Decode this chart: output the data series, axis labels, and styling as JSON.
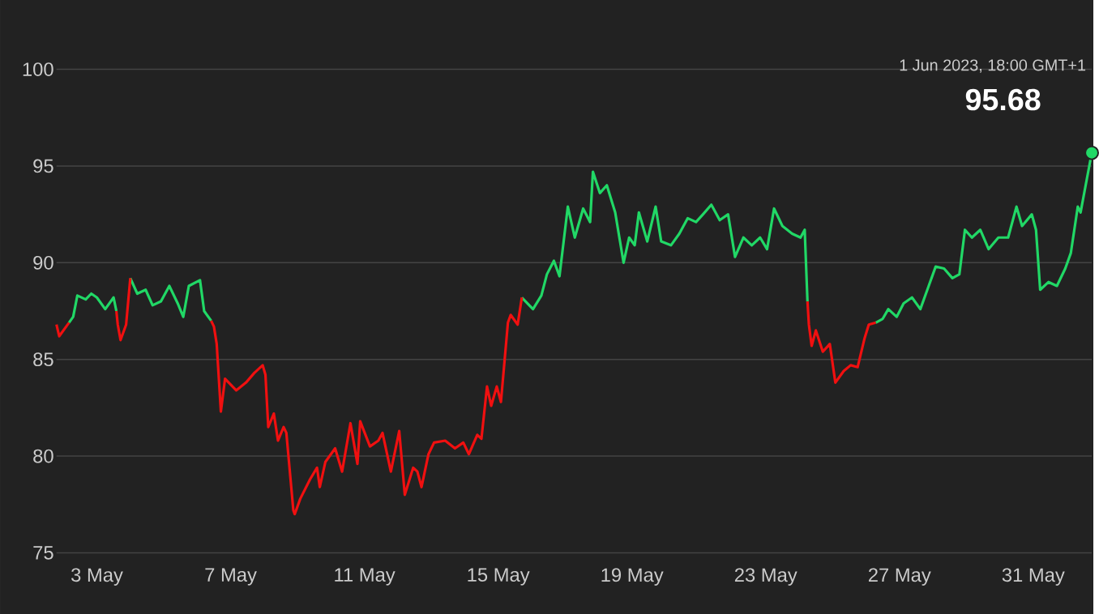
{
  "chart_data": {
    "type": "line",
    "grid": "y",
    "xlim": [
      "2023-05-01T19:00",
      "2023-06-01T18:00"
    ],
    "ylim": [
      75,
      100
    ],
    "yticks": [
      75,
      80,
      85,
      90,
      95,
      100
    ],
    "xticks": [
      {
        "value": "2023-05-03",
        "label": "3 May"
      },
      {
        "value": "2023-05-07",
        "label": "7 May"
      },
      {
        "value": "2023-05-11",
        "label": "11 May"
      },
      {
        "value": "2023-05-15",
        "label": "15 May"
      },
      {
        "value": "2023-05-19",
        "label": "19 May"
      },
      {
        "value": "2023-05-23",
        "label": "23 May"
      },
      {
        "value": "2023-05-27",
        "label": "27 May"
      },
      {
        "value": "2023-05-31",
        "label": "31 May"
      }
    ],
    "annotations": [
      {
        "text": "95.68",
        "x": "2023-06-01T18:00",
        "y": 95.68
      },
      "1 Jun 2023, 18:00 GMT+1"
    ],
    "x": [
      "2023-05-01T19:00",
      "2023-05-01T21:00",
      "2023-05-02T04:00",
      "2023-05-02T07:00",
      "2023-05-02T10:00",
      "2023-05-02T16:00",
      "2023-05-02T20:00",
      "2023-05-03T00:00",
      "2023-05-03T06:00",
      "2023-05-03T12:00",
      "2023-05-03T14:00",
      "2023-05-03T15:00",
      "2023-05-03T17:00",
      "2023-05-03T21:00",
      "2023-05-04T00:00",
      "2023-05-04T05:00",
      "2023-05-04T11:00",
      "2023-05-04T16:00",
      "2023-05-04T22:00",
      "2023-05-05T04:00",
      "2023-05-05T10:00",
      "2023-05-05T14:00",
      "2023-05-05T18:00",
      "2023-05-06T02:00",
      "2023-05-06T05:00",
      "2023-05-06T10:00",
      "2023-05-06T12:00",
      "2023-05-06T14:00",
      "2023-05-06T17:00",
      "2023-05-06T20:00",
      "2023-05-07T04:00",
      "2023-05-07T11:00",
      "2023-05-07T17:00",
      "2023-05-07T23:00",
      "2023-05-08T01:00",
      "2023-05-08T03:00",
      "2023-05-08T07:00",
      "2023-05-08T10:00",
      "2023-05-08T14:00",
      "2023-05-08T16:00",
      "2023-05-08T21:00",
      "2023-05-08T22:00",
      "2023-05-09T02:00",
      "2023-05-09T09:00",
      "2023-05-09T14:00",
      "2023-05-09T16:00",
      "2023-05-09T20:00",
      "2023-05-10T03:00",
      "2023-05-10T08:00",
      "2023-05-10T14:00",
      "2023-05-10T19:00",
      "2023-05-10T21:00",
      "2023-05-11T04:00",
      "2023-05-11T10:00",
      "2023-05-11T13:00",
      "2023-05-11T19:00",
      "2023-05-12T01:00",
      "2023-05-12T05:00",
      "2023-05-12T11:00",
      "2023-05-12T14:00",
      "2023-05-12T17:00",
      "2023-05-12T22:00",
      "2023-05-13T02:00",
      "2023-05-13T10:00",
      "2023-05-13T17:00",
      "2023-05-13T23:00",
      "2023-05-14T03:00",
      "2023-05-14T09:00",
      "2023-05-14T12:00",
      "2023-05-14T16:00",
      "2023-05-14T19:00",
      "2023-05-14T23:00",
      "2023-05-15T02:00",
      "2023-05-15T07:00",
      "2023-05-15T09:00",
      "2023-05-15T14:00",
      "2023-05-15T17:00",
      "2023-05-16T01:00",
      "2023-05-16T07:00",
      "2023-05-16T11:00",
      "2023-05-16T16:00",
      "2023-05-16T20:00",
      "2023-05-17T02:00",
      "2023-05-17T07:00",
      "2023-05-17T13:00",
      "2023-05-17T18:00",
      "2023-05-17T20:00",
      "2023-05-18T01:00",
      "2023-05-18T06:00",
      "2023-05-18T12:00",
      "2023-05-18T18:00",
      "2023-05-18T22:00",
      "2023-05-19T02:00",
      "2023-05-19T05:00",
      "2023-05-19T11:00",
      "2023-05-19T17:00",
      "2023-05-19T21:00",
      "2023-05-20T04:00",
      "2023-05-20T10:00",
      "2023-05-20T16:00",
      "2023-05-20T22:00",
      "2023-05-21T03:00",
      "2023-05-21T09:00",
      "2023-05-21T15:00",
      "2023-05-21T21:00",
      "2023-05-22T02:00",
      "2023-05-22T08:00",
      "2023-05-22T14:00",
      "2023-05-22T20:00",
      "2023-05-23T01:00",
      "2023-05-23T06:00",
      "2023-05-23T12:00",
      "2023-05-23T19:00",
      "2023-05-24T01:00",
      "2023-05-24T04:00",
      "2023-05-24T06:00",
      "2023-05-24T07:00",
      "2023-05-24T09:00",
      "2023-05-24T12:00",
      "2023-05-24T17:00",
      "2023-05-24T22:00",
      "2023-05-25T02:00",
      "2023-05-25T08:00",
      "2023-05-25T13:00",
      "2023-05-25T18:00",
      "2023-05-25T23:00",
      "2023-05-26T02:00",
      "2023-05-26T07:00",
      "2023-05-26T12:00",
      "2023-05-26T16:00",
      "2023-05-26T22:00",
      "2023-05-27T03:00",
      "2023-05-27T09:00",
      "2023-05-27T15:00",
      "2023-05-27T21:00",
      "2023-05-28T02:00",
      "2023-05-28T08:00",
      "2023-05-28T14:00",
      "2023-05-28T19:00",
      "2023-05-28T23:00",
      "2023-05-29T04:00",
      "2023-05-29T10:00",
      "2023-05-29T16:00",
      "2023-05-29T23:00",
      "2023-05-30T06:00",
      "2023-05-30T12:00",
      "2023-05-30T16:00",
      "2023-05-30T23:00",
      "2023-05-31T02:00",
      "2023-05-31T05:00",
      "2023-05-31T11:00",
      "2023-05-31T17:00",
      "2023-05-31T23:00",
      "2023-06-01T03:00",
      "2023-06-01T08:00",
      "2023-06-01T10:00",
      "2023-06-01T18:00"
    ],
    "series": [
      {
        "color": "#21d866",
        "values": [
          null,
          null,
          86.9,
          87.2,
          88.3,
          88.1,
          88.4,
          88.2,
          87.6,
          88.2,
          87.5,
          null,
          null,
          null,
          89.2,
          88.4,
          88.6,
          87.8,
          88.0,
          88.8,
          87.9,
          87.2,
          88.8,
          89.1,
          87.5,
          87.0,
          null,
          null,
          null,
          null,
          null,
          null,
          null,
          null,
          null,
          null,
          null,
          null,
          null,
          null,
          null,
          null,
          null,
          null,
          null,
          null,
          null,
          null,
          null,
          null,
          null,
          null,
          null,
          null,
          null,
          null,
          null,
          null,
          null,
          null,
          null,
          null,
          null,
          null,
          null,
          null,
          null,
          null,
          null,
          null,
          null,
          null,
          null,
          null,
          null,
          null,
          88.2,
          87.6,
          88.3,
          89.4,
          90.1,
          89.3,
          92.9,
          91.3,
          92.8,
          92.1,
          94.7,
          93.6,
          94.0,
          92.6,
          90.0,
          91.3,
          90.9,
          92.6,
          91.1,
          92.9,
          91.1,
          90.9,
          91.5,
          92.3,
          92.1,
          92.5,
          93.0,
          92.2,
          92.5,
          90.3,
          91.3,
          90.9,
          91.3,
          90.7,
          92.8,
          91.9,
          91.5,
          91.3,
          91.7,
          88.0,
          null,
          null,
          null,
          null,
          null,
          null,
          null,
          null,
          null,
          null,
          null,
          86.9,
          87.1,
          87.6,
          87.2,
          87.9,
          88.2,
          87.6,
          88.8,
          89.8,
          89.7,
          89.2,
          89.4,
          91.7,
          91.3,
          91.7,
          90.7,
          91.3,
          91.3,
          92.9,
          91.9,
          92.5,
          91.7,
          88.6,
          89.0,
          88.8,
          89.7,
          90.5,
          92.9,
          92.6,
          95.68
        ]
      },
      {
        "color": "#f01010",
        "values": [
          86.8,
          86.2,
          86.9,
          null,
          null,
          null,
          null,
          null,
          null,
          null,
          87.5,
          86.8,
          86.0,
          86.8,
          89.2,
          null,
          null,
          null,
          null,
          null,
          null,
          null,
          null,
          null,
          null,
          87.0,
          86.7,
          85.8,
          82.3,
          84.0,
          83.4,
          83.8,
          84.3,
          84.7,
          84.2,
          81.5,
          82.2,
          80.8,
          81.5,
          81.2,
          77.2,
          77.0,
          77.8,
          78.8,
          79.4,
          78.4,
          79.7,
          80.4,
          79.2,
          81.7,
          79.6,
          81.8,
          80.5,
          80.8,
          81.2,
          79.2,
          81.3,
          78.0,
          79.4,
          79.2,
          78.4,
          80.1,
          80.7,
          80.8,
          80.4,
          80.7,
          80.1,
          81.1,
          80.9,
          83.6,
          82.6,
          83.6,
          82.8,
          86.9,
          87.3,
          86.8,
          88.2,
          null,
          null,
          null,
          null,
          null,
          null,
          null,
          null,
          null,
          null,
          null,
          null,
          null,
          null,
          null,
          null,
          null,
          null,
          null,
          null,
          null,
          null,
          null,
          null,
          null,
          null,
          null,
          null,
          null,
          null,
          null,
          null,
          null,
          null,
          null,
          null,
          null,
          null,
          88.0,
          86.8,
          85.7,
          86.5,
          85.4,
          85.8,
          83.8,
          84.4,
          84.7,
          84.6,
          86.1,
          86.8,
          86.9,
          null,
          null,
          null,
          null,
          null,
          null,
          null,
          null,
          null,
          null,
          null,
          null,
          null,
          null,
          null,
          null,
          null,
          null,
          null,
          null,
          null,
          null,
          null,
          null,
          null,
          null,
          null,
          null,
          null
        ]
      }
    ]
  }
}
